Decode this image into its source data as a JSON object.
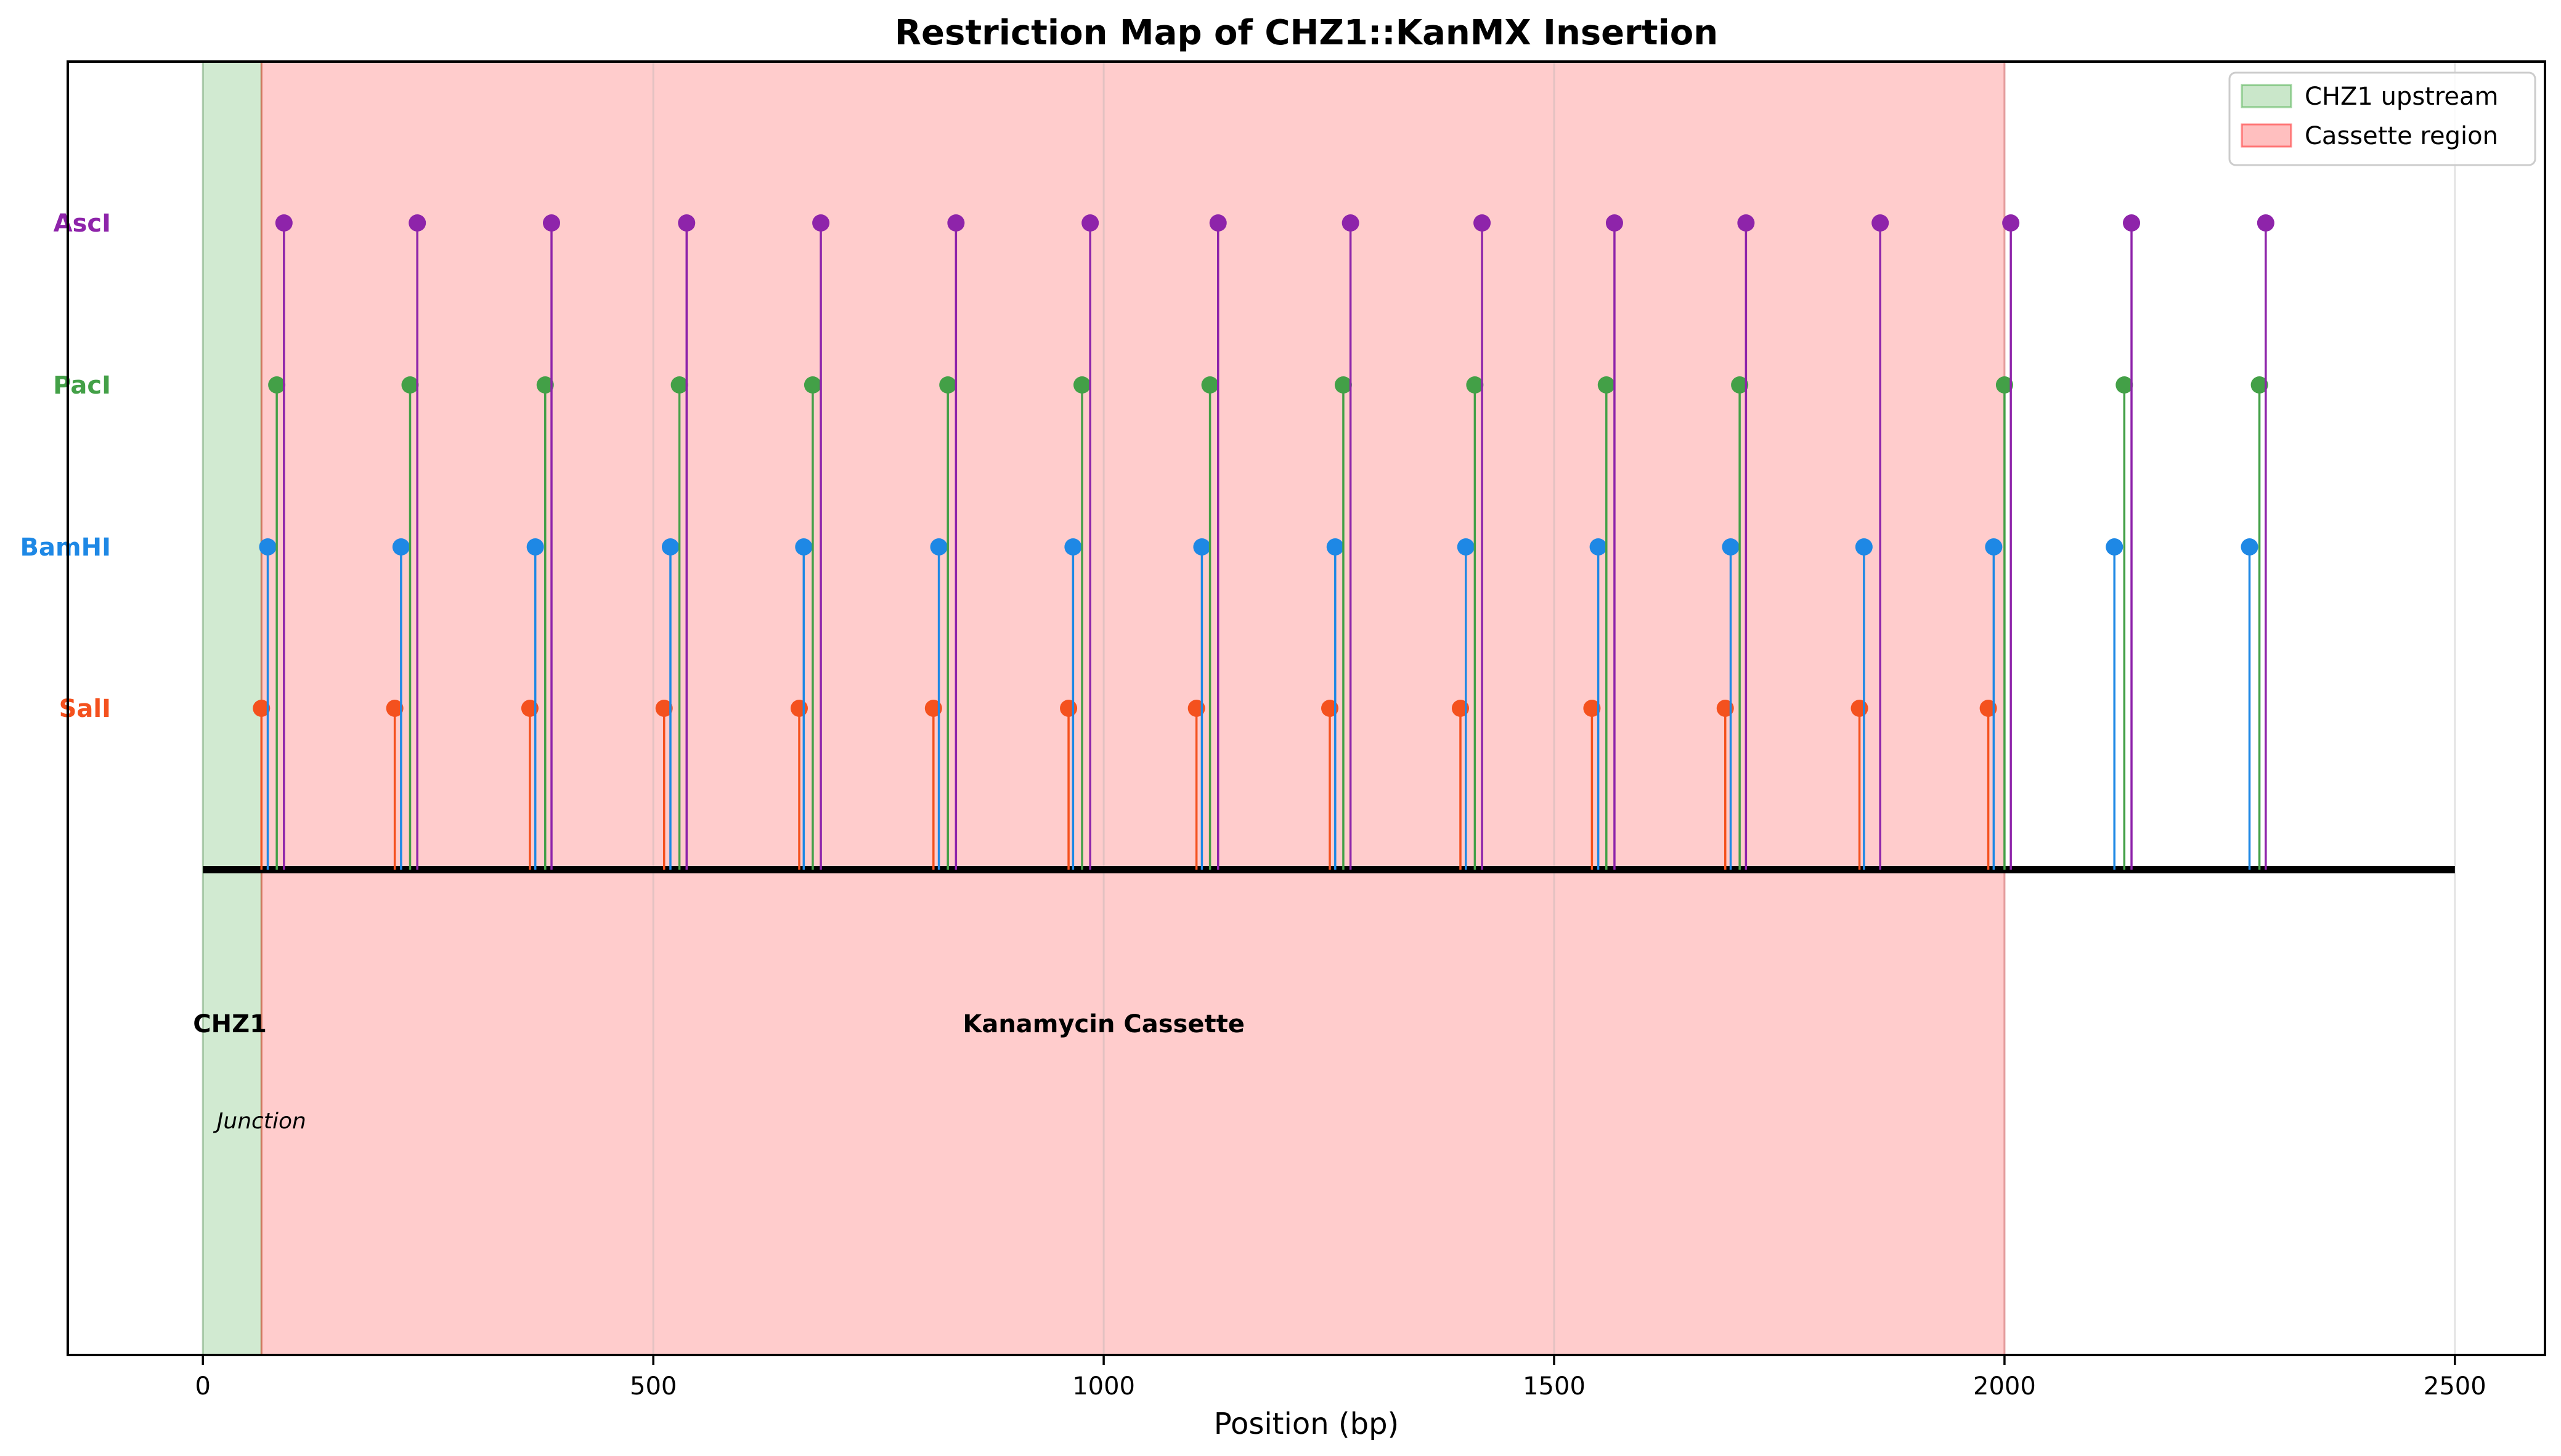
{
  "chart_data": {
    "type": "scatter",
    "title": "Restriction Map of CHZ1::KanMX Insertion",
    "xlabel": "Position (bp)",
    "xlim": [
      -150,
      2600
    ],
    "xticks": [
      0,
      500,
      1000,
      1500,
      2000,
      2500
    ],
    "grid": true,
    "legend_position": "top-right",
    "regions": [
      {
        "name": "CHZ1 upstream",
        "start": 0,
        "end": 65,
        "color": "#2ca02c"
      },
      {
        "name": "Cassette region",
        "start": 65,
        "end": 2000,
        "color": "#ff0000"
      }
    ],
    "region_labels": [
      {
        "text": "CHZ1",
        "x": 30
      },
      {
        "text": "Kanamycin Cassette",
        "x": 1000
      }
    ],
    "junction_label": {
      "text": "Junction",
      "x": 65
    },
    "backbone": {
      "start": 0,
      "end": 2500
    },
    "series": [
      {
        "name": "SalI",
        "color": "#f4511e",
        "level": 1,
        "positions": [
          65,
          213,
          363,
          512,
          662,
          811,
          961,
          1103,
          1251,
          1396,
          1542,
          1690,
          1839,
          1982
        ]
      },
      {
        "name": "BamHI",
        "color": "#1e88e5",
        "level": 2,
        "positions": [
          72,
          220,
          369,
          519,
          667,
          817,
          966,
          1109,
          1257,
          1402,
          1549,
          1696,
          1844,
          1988,
          2122,
          2272
        ]
      },
      {
        "name": "PacI",
        "color": "#43a047",
        "level": 3,
        "positions": [
          82,
          230,
          380,
          529,
          677,
          827,
          976,
          1118,
          1266,
          1412,
          1558,
          1706,
          2000,
          2133,
          2283
        ]
      },
      {
        "name": "AscI",
        "color": "#8e24aa",
        "level": 4,
        "positions": [
          90,
          238,
          387,
          537,
          686,
          836,
          985,
          1127,
          1274,
          1420,
          1567,
          1713,
          1862,
          2007,
          2141,
          2290
        ]
      }
    ]
  }
}
